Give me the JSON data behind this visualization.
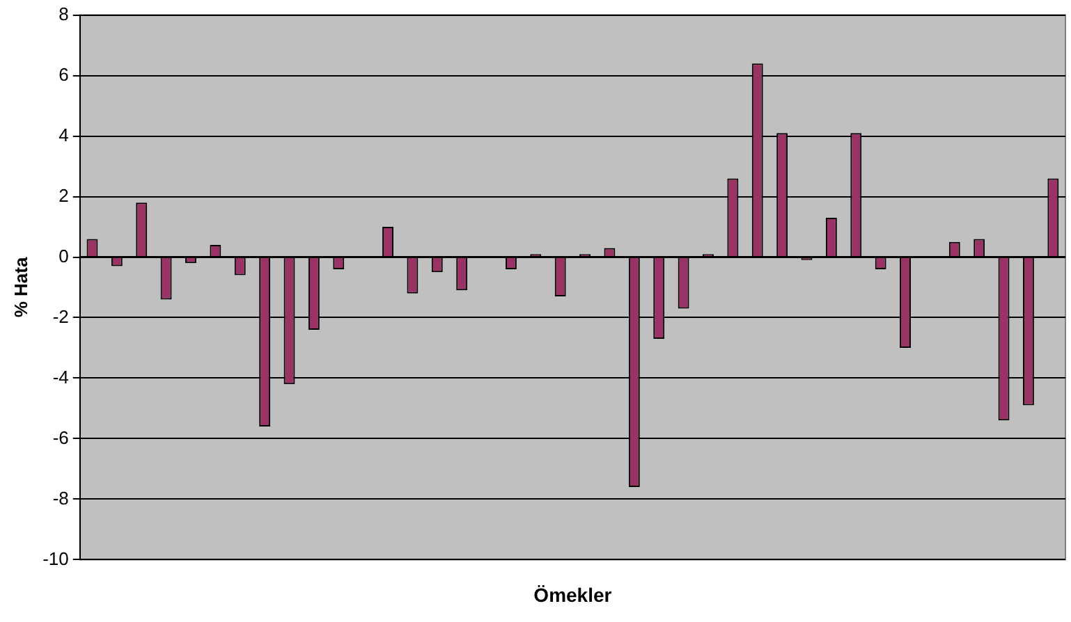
{
  "chart_data": {
    "type": "bar",
    "xlabel": "Ömekler",
    "ylabel": "% Hata",
    "categories": [
      null,
      null,
      null,
      null,
      null,
      null,
      null,
      null,
      null,
      null,
      null,
      null,
      null,
      null,
      null,
      null,
      null,
      null,
      null,
      null,
      null,
      null,
      null,
      null,
      null,
      null,
      null,
      null,
      null,
      null,
      null,
      null,
      null,
      null,
      null,
      null,
      null,
      null,
      null,
      null
    ],
    "values": [
      0.6,
      -0.3,
      1.8,
      -1.4,
      -0.2,
      0.4,
      -0.6,
      -5.6,
      -4.2,
      -2.4,
      -0.4,
      0,
      1.0,
      -1.2,
      -0.5,
      -1.1,
      0,
      -0.4,
      0.1,
      -1.3,
      0.1,
      0.3,
      -7.6,
      -2.7,
      -1.7,
      0.1,
      2.6,
      6.4,
      4.1,
      -0.1,
      1.3,
      4.1,
      -0.4,
      -3.0,
      0,
      0.5,
      0.6,
      -5.4,
      -4.9,
      2.6
    ],
    "color": "#993366",
    "ylim": [
      -10,
      8
    ],
    "yticks": [
      -10,
      -8,
      -6,
      -4,
      -2,
      0,
      2,
      4,
      6,
      8
    ],
    "grid": "y",
    "tick_labels": "y"
  }
}
